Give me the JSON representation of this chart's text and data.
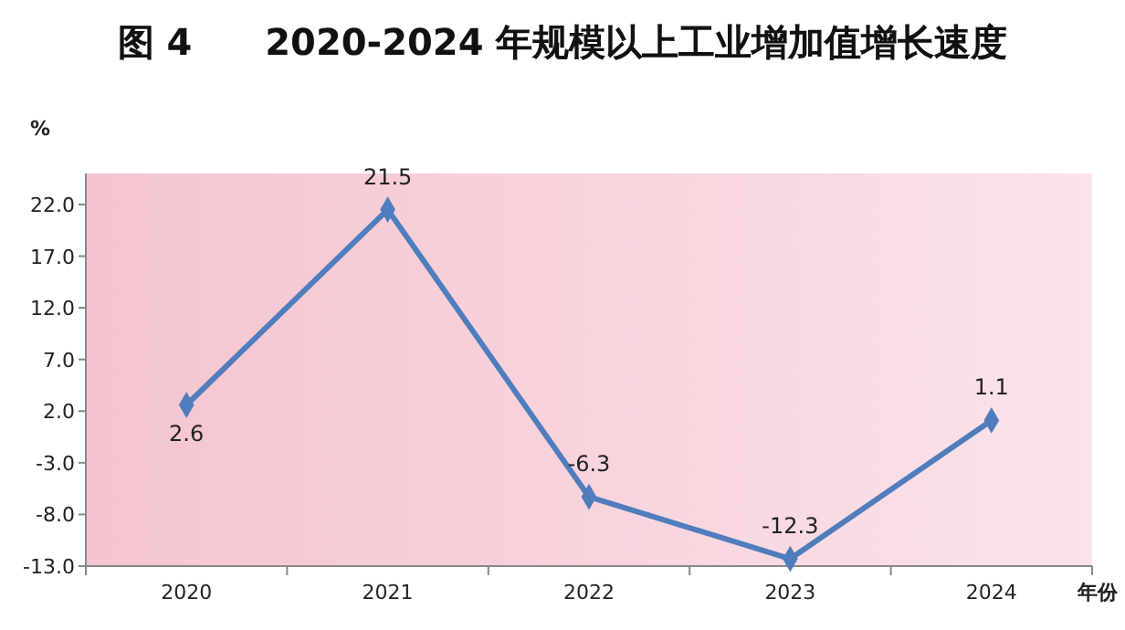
{
  "chart_data": {
    "type": "line",
    "title": "图 4　　2020-2024 年规模以上工业增加值增长速度",
    "ylabel": "%",
    "xlabel": "年份",
    "categories": [
      "2020",
      "2021",
      "2022",
      "2023",
      "2024"
    ],
    "series": [
      {
        "color": "#4f7dbd",
        "values": [
          2.6,
          21.5,
          -6.3,
          -12.3,
          1.1
        ]
      }
    ],
    "ylim": [
      -13,
      25
    ],
    "yticks": [
      {
        "value": -13,
        "label": "-13.0"
      },
      {
        "value": -8,
        "label": "-8.0"
      },
      {
        "value": -3,
        "label": "-3.0"
      },
      {
        "value": 2,
        "label": "2.0"
      },
      {
        "value": 7,
        "label": "7.0"
      },
      {
        "value": 12,
        "label": "12.0"
      },
      {
        "value": 17,
        "label": "17.0"
      },
      {
        "value": 22,
        "label": "22.0"
      }
    ],
    "marker": "diamond",
    "line_style": "solid",
    "data_labels": true,
    "grid": false
  }
}
